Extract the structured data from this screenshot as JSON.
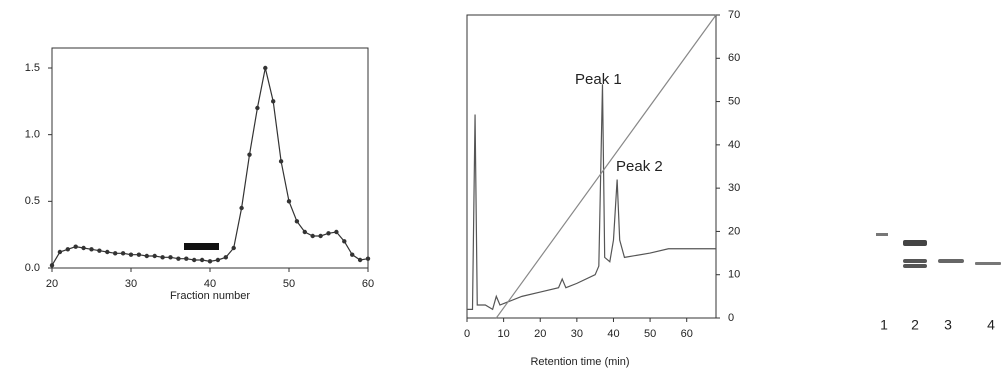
{
  "chart_data": [
    {
      "type": "line",
      "x_label": "Fraction number",
      "x": [
        20,
        21,
        22,
        23,
        24,
        25,
        26,
        27,
        28,
        29,
        30,
        31,
        32,
        33,
        34,
        35,
        36,
        37,
        38,
        39,
        40,
        41,
        42,
        43,
        44,
        45,
        46,
        47,
        48,
        49,
        50,
        51,
        52,
        53,
        54,
        55,
        56,
        57,
        58,
        59,
        60
      ],
      "values": [
        0.02,
        0.12,
        0.14,
        0.16,
        0.15,
        0.14,
        0.13,
        0.12,
        0.11,
        0.11,
        0.1,
        0.1,
        0.09,
        0.09,
        0.08,
        0.08,
        0.07,
        0.07,
        0.06,
        0.06,
        0.05,
        0.06,
        0.08,
        0.15,
        0.45,
        0.85,
        1.2,
        1.5,
        1.25,
        0.8,
        0.5,
        0.35,
        0.27,
        0.24,
        0.24,
        0.26,
        0.27,
        0.2,
        0.1,
        0.06,
        0.07
      ],
      "color": "#333333",
      "xlim": [
        20,
        60
      ],
      "xticks": [
        20,
        30,
        40,
        50,
        60
      ],
      "ylim": [
        0,
        1.65
      ],
      "yticks": [
        {
          "value": 0,
          "label": "0.0"
        },
        0.5,
        {
          "value": 1,
          "label": "1.0"
        },
        1.5
      ]
    },
    {
      "type": "line",
      "x_label": "Retention time (min)",
      "annotations": [
        "Peak 1",
        "Peak 2"
      ],
      "series": [
        {
          "color": "#555555",
          "x": [
            0,
            1.5,
            2.2,
            2.8,
            5,
            7,
            8,
            9,
            15,
            20,
            25,
            26,
            27,
            30,
            35,
            36,
            37,
            37.6,
            39,
            40,
            41,
            41.7,
            43,
            50,
            55,
            60,
            65,
            68
          ],
          "values": [
            2,
            2,
            47,
            3,
            3,
            2,
            5,
            3,
            5,
            6,
            7,
            9,
            7,
            8,
            10,
            12,
            54,
            14,
            13,
            18,
            32,
            18,
            14,
            15,
            16,
            16,
            16,
            16
          ]
        },
        {
          "color": "#888888",
          "x": [
            8,
            68
          ],
          "values": [
            0,
            70
          ]
        }
      ],
      "xlim": [
        0,
        68
      ],
      "xticks": [
        0,
        10,
        20,
        30,
        40,
        50,
        60
      ],
      "ylim": [
        0,
        70
      ],
      "yticks": [
        0,
        10,
        20,
        30,
        40,
        50,
        60,
        70
      ]
    },
    {
      "type": "gel",
      "categories": [
        "1",
        "2",
        "3",
        "4"
      ]
    }
  ]
}
